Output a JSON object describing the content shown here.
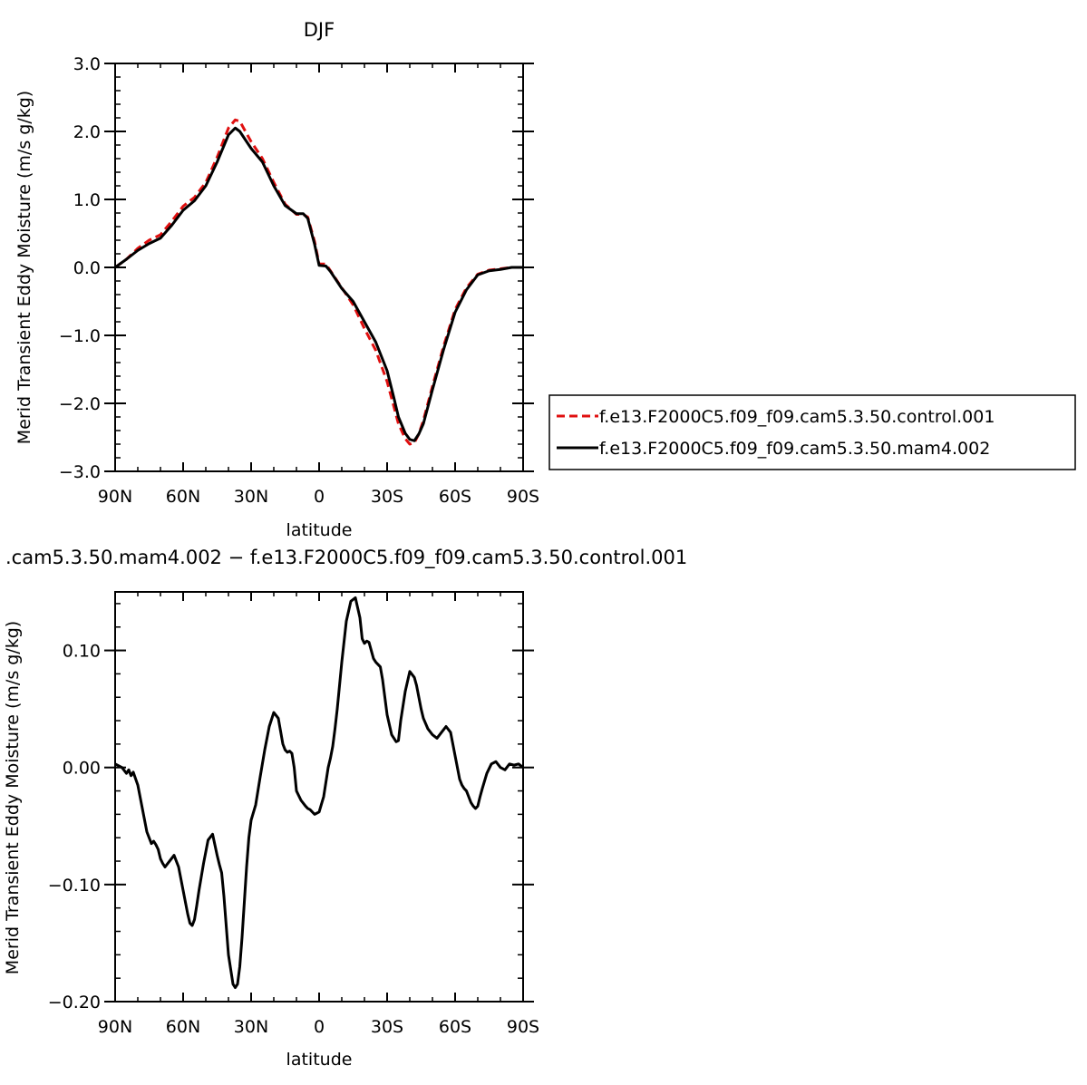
{
  "chart_data": [
    {
      "type": "line",
      "title": "DJF",
      "xlabel": "latitude",
      "ylabel": "Merid Transient Eddy Moisture (m/s g/kg)",
      "xlim": [
        90,
        -90
      ],
      "ylim": [
        -3.0,
        3.0
      ],
      "x_ticks": [
        {
          "value": 90,
          "label": "90N"
        },
        {
          "value": 60,
          "label": "60N"
        },
        {
          "value": 30,
          "label": "30N"
        },
        {
          "value": 0,
          "label": "0"
        },
        {
          "value": -30,
          "label": "30S"
        },
        {
          "value": -60,
          "label": "60S"
        },
        {
          "value": -90,
          "label": "90S"
        }
      ],
      "y_ticks": [
        {
          "value": 3.0,
          "label": "3.0"
        },
        {
          "value": 2.0,
          "label": "2.0"
        },
        {
          "value": 1.0,
          "label": "1.0"
        },
        {
          "value": 0.0,
          "label": "0.0"
        },
        {
          "value": -1.0,
          "label": "−1.0"
        },
        {
          "value": -2.0,
          "label": "−2.0"
        },
        {
          "value": -3.0,
          "label": "−3.0"
        }
      ],
      "legend_position": "right",
      "series": [
        {
          "name": "f.e13.F2000C5.f09_f09.cam5.3.50.control.001",
          "color": "#e01010",
          "dash": "dashed",
          "x": [
            90,
            85,
            80,
            75,
            70,
            65,
            60,
            55,
            50,
            45,
            40,
            37,
            35,
            30,
            25,
            20,
            15,
            10,
            7,
            5,
            2,
            0,
            -3,
            -5,
            -10,
            -15,
            -20,
            -25,
            -30,
            -33,
            -35,
            -38,
            -40,
            -42,
            -44,
            -46,
            -48,
            -50,
            -55,
            -60,
            -65,
            -70,
            -75,
            -80,
            -85,
            -90
          ],
          "values": [
            0.0,
            0.12,
            0.28,
            0.4,
            0.48,
            0.68,
            0.9,
            1.03,
            1.25,
            1.62,
            2.05,
            2.17,
            2.15,
            1.85,
            1.6,
            1.25,
            0.93,
            0.78,
            0.78,
            0.74,
            0.38,
            0.05,
            0.05,
            -0.05,
            -0.3,
            -0.55,
            -0.9,
            -1.22,
            -1.68,
            -2.05,
            -2.3,
            -2.52,
            -2.6,
            -2.58,
            -2.45,
            -2.25,
            -2.0,
            -1.75,
            -1.15,
            -0.62,
            -0.3,
            -0.1,
            -0.04,
            -0.02,
            0.0,
            0.0
          ]
        },
        {
          "name": "f.e13.F2000C5.f09_f09.cam5.3.50.mam4.002",
          "color": "#000000",
          "dash": "solid",
          "x": [
            90,
            85,
            80,
            75,
            70,
            65,
            60,
            55,
            50,
            45,
            40,
            37,
            35,
            30,
            25,
            20,
            15,
            10,
            7,
            5,
            2,
            0,
            -3,
            -5,
            -10,
            -15,
            -20,
            -25,
            -30,
            -33,
            -35,
            -38,
            -40,
            -42,
            -44,
            -46,
            -48,
            -50,
            -55,
            -60,
            -65,
            -70,
            -75,
            -80,
            -85,
            -90
          ],
          "values": [
            0.0,
            0.12,
            0.25,
            0.35,
            0.43,
            0.62,
            0.84,
            0.98,
            1.2,
            1.55,
            1.95,
            2.05,
            2.0,
            1.75,
            1.55,
            1.2,
            0.91,
            0.79,
            0.79,
            0.72,
            0.34,
            0.03,
            0.02,
            -0.06,
            -0.31,
            -0.5,
            -0.8,
            -1.1,
            -1.52,
            -1.92,
            -2.2,
            -2.44,
            -2.53,
            -2.55,
            -2.45,
            -2.3,
            -2.05,
            -1.8,
            -1.2,
            -0.66,
            -0.33,
            -0.11,
            -0.05,
            -0.03,
            0.0,
            0.0
          ]
        }
      ]
    },
    {
      "type": "line",
      "title": ".cam5.3.50.mam4.002 − f.e13.F2000C5.f09_f09.cam5.3.50.control.001",
      "xlabel": "latitude",
      "ylabel": "Merid Transient Eddy Moisture (m/s g/kg)",
      "xlim": [
        90,
        -90
      ],
      "ylim": [
        -0.2,
        0.15
      ],
      "x_ticks": [
        {
          "value": 90,
          "label": "90N"
        },
        {
          "value": 60,
          "label": "60N"
        },
        {
          "value": 30,
          "label": "30N"
        },
        {
          "value": 0,
          "label": "0"
        },
        {
          "value": -30,
          "label": "30S"
        },
        {
          "value": -60,
          "label": "60S"
        },
        {
          "value": -90,
          "label": "90S"
        }
      ],
      "y_ticks": [
        {
          "value": 0.1,
          "label": "0.10"
        },
        {
          "value": 0.0,
          "label": "0.00"
        },
        {
          "value": -0.1,
          "label": "−0.10"
        },
        {
          "value": -0.2,
          "label": "−0.20"
        }
      ],
      "series": [
        {
          "color": "#000000",
          "dash": "solid",
          "x": [
            90,
            87,
            85,
            84,
            83,
            82,
            80,
            78,
            76,
            74,
            73,
            72,
            71,
            70,
            69,
            68,
            66,
            64,
            62,
            60,
            58,
            57,
            56,
            55,
            54,
            53,
            51,
            49,
            47,
            45,
            44,
            43,
            42,
            40,
            38,
            37,
            36,
            35,
            34,
            33,
            32,
            31,
            30,
            28,
            26,
            24,
            22,
            20,
            18,
            16,
            15,
            14,
            13,
            12,
            11,
            10,
            8,
            6,
            5,
            4,
            2,
            0,
            -2,
            -4,
            -5,
            -6,
            -7,
            -8,
            -9,
            -10,
            -12,
            -14,
            -16,
            -18,
            -19,
            -20,
            -21,
            -22,
            -23,
            -24,
            -25,
            -26,
            -27,
            -28,
            -29,
            -30,
            -32,
            -34,
            -35,
            -36,
            -38,
            -40,
            -42,
            -43,
            -44,
            -45,
            -46,
            -48,
            -50,
            -52,
            -54,
            -56,
            -58,
            -59,
            -60,
            -61,
            -62,
            -63,
            -64,
            -65,
            -66,
            -67,
            -68,
            -69,
            -70,
            -71,
            -72,
            -74,
            -76,
            -78,
            -80,
            -82,
            -84,
            -86,
            -88,
            -90
          ],
          "values": [
            0.003,
            0.0,
            -0.005,
            -0.002,
            -0.007,
            -0.004,
            -0.015,
            -0.035,
            -0.055,
            -0.065,
            -0.063,
            -0.066,
            -0.07,
            -0.078,
            -0.082,
            -0.085,
            -0.08,
            -0.075,
            -0.085,
            -0.105,
            -0.125,
            -0.133,
            -0.135,
            -0.13,
            -0.118,
            -0.105,
            -0.082,
            -0.062,
            -0.057,
            -0.075,
            -0.083,
            -0.09,
            -0.11,
            -0.16,
            -0.185,
            -0.188,
            -0.185,
            -0.17,
            -0.145,
            -0.115,
            -0.085,
            -0.06,
            -0.045,
            -0.032,
            -0.008,
            0.015,
            0.035,
            0.047,
            0.042,
            0.02,
            0.015,
            0.013,
            0.014,
            0.012,
            0.0,
            -0.02,
            -0.028,
            -0.033,
            -0.035,
            -0.036,
            -0.04,
            -0.038,
            -0.025,
            0.0,
            0.008,
            0.018,
            0.033,
            0.05,
            0.07,
            0.09,
            0.125,
            0.142,
            0.145,
            0.128,
            0.11,
            0.106,
            0.108,
            0.107,
            0.1,
            0.093,
            0.09,
            0.088,
            0.086,
            0.075,
            0.06,
            0.045,
            0.028,
            0.022,
            0.023,
            0.04,
            0.065,
            0.082,
            0.077,
            0.07,
            0.06,
            0.05,
            0.042,
            0.033,
            0.028,
            0.025,
            0.03,
            0.035,
            0.03,
            0.02,
            0.01,
            0.0,
            -0.01,
            -0.015,
            -0.018,
            -0.02,
            -0.025,
            -0.03,
            -0.033,
            -0.035,
            -0.033,
            -0.025,
            -0.018,
            -0.005,
            0.003,
            0.005,
            0.0,
            -0.002,
            0.003,
            0.002,
            0.003,
            0.0
          ]
        }
      ]
    }
  ]
}
